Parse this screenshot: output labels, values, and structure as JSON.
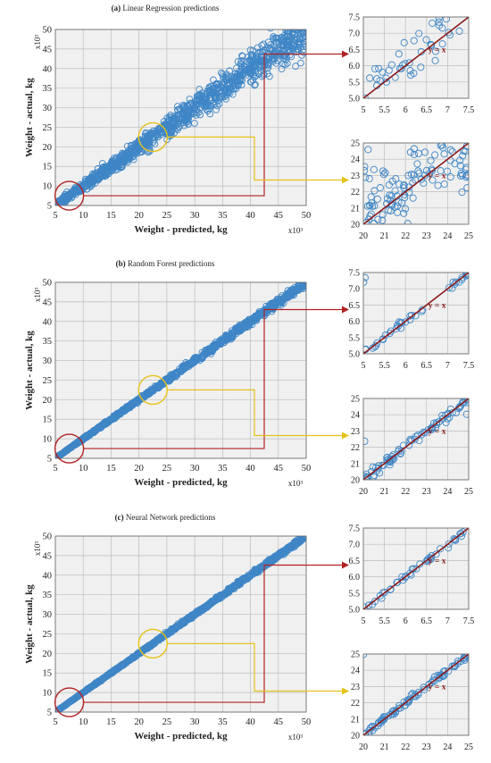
{
  "panels": [
    {
      "id": "a",
      "tag": "(a)",
      "title": "Linear Regression predictions"
    },
    {
      "id": "b",
      "tag": "(b)",
      "title": "Random Forest predictions"
    },
    {
      "id": "c",
      "tag": "(c)",
      "title": "Neural Network predictions"
    }
  ],
  "colors": {
    "point": "#3f86c6",
    "identity_line": "#8b1a1a",
    "zoom_low": "#b22222",
    "zoom_mid": "#e6c21a",
    "plot_bg": "#f0f0f0",
    "grid": "#bdbdbd"
  },
  "chart_data": [
    {
      "type": "scatter",
      "panel": "a",
      "role": "main",
      "xlabel": "Weight - predicted, kg",
      "ylabel": "Weight - actual, kg",
      "x_multiplier": "x10³",
      "y_multiplier": "x10³",
      "xlim": [
        5,
        50
      ],
      "ylim": [
        5,
        50
      ],
      "xticks": [
        5,
        10,
        15,
        20,
        25,
        30,
        35,
        40,
        45,
        50
      ],
      "yticks": [
        5,
        10,
        15,
        20,
        25,
        30,
        35,
        40,
        45,
        50
      ],
      "grid": true,
      "zoom_regions": [
        {
          "center": [
            7.5,
            7.5
          ],
          "color": "zoom_low"
        },
        {
          "center": [
            22.5,
            22.5
          ],
          "color": "zoom_mid"
        }
      ],
      "n_points": 1200,
      "spread": 0.1,
      "seed": 11
    },
    {
      "type": "scatter",
      "panel": "a",
      "role": "inset",
      "xlim": [
        5,
        7.5
      ],
      "ylim": [
        5,
        7.5
      ],
      "xticks": [
        5,
        5.5,
        6,
        6.5,
        7,
        7.5
      ],
      "yticks": [
        5.0,
        5.5,
        6.0,
        6.5,
        7.0,
        7.5
      ],
      "xtick_labels": [
        "5",
        "5.5",
        "6",
        "6.5",
        "7",
        "7.5"
      ],
      "ytick_labels": [
        "5.0",
        "5.5",
        "6.0",
        "6.5",
        "7.0",
        "7.5"
      ],
      "grid": true,
      "identity_label": "y = x",
      "n_points": 42,
      "spread": 0.85,
      "seed": 21
    },
    {
      "type": "scatter",
      "panel": "a",
      "role": "inset",
      "xlim": [
        20,
        25
      ],
      "ylim": [
        20,
        25
      ],
      "xticks": [
        20,
        21,
        22,
        23,
        24,
        25
      ],
      "yticks": [
        20,
        21,
        22,
        23,
        24,
        25
      ],
      "xtick_labels": [
        "20",
        "21",
        "22",
        "23",
        "24",
        "25"
      ],
      "ytick_labels": [
        "20",
        "21",
        "22",
        "23",
        "24",
        "25"
      ],
      "grid": true,
      "identity_label": "y = x",
      "n_points": 110,
      "spread": 2.0,
      "seed": 22
    },
    {
      "type": "scatter",
      "panel": "b",
      "role": "main",
      "xlabel": "Weight - predicted, kg",
      "ylabel": "Weight - actual, kg",
      "x_multiplier": "x10³",
      "y_multiplier": "x10³",
      "xlim": [
        5,
        50
      ],
      "ylim": [
        5,
        50
      ],
      "xticks": [
        5,
        10,
        15,
        20,
        25,
        30,
        35,
        40,
        45,
        50
      ],
      "yticks": [
        5,
        10,
        15,
        20,
        25,
        30,
        35,
        40,
        45,
        50
      ],
      "grid": true,
      "zoom_regions": [
        {
          "center": [
            7.5,
            7.5
          ],
          "color": "zoom_low"
        },
        {
          "center": [
            22.5,
            22.5
          ],
          "color": "zoom_mid"
        }
      ],
      "n_points": 1100,
      "spread": 0.022,
      "seed": 31
    },
    {
      "type": "scatter",
      "panel": "b",
      "role": "inset",
      "xlim": [
        5,
        7.5
      ],
      "ylim": [
        5,
        7.5
      ],
      "xticks": [
        5,
        5.5,
        6,
        6.5,
        7,
        7.5
      ],
      "yticks": [
        5.0,
        5.5,
        6.0,
        6.5,
        7.0,
        7.5
      ],
      "xtick_labels": [
        "5",
        "5.5",
        "6",
        "6.5",
        "7",
        "7.5"
      ],
      "ytick_labels": [
        "5.0",
        "5.5",
        "6.0",
        "6.5",
        "7.0",
        "7.5"
      ],
      "grid": true,
      "identity_label": "y = x",
      "n_points": 40,
      "spread": 0.13,
      "seed": 41
    },
    {
      "type": "scatter",
      "panel": "b",
      "role": "inset",
      "xlim": [
        20,
        25
      ],
      "ylim": [
        20,
        25
      ],
      "xticks": [
        20,
        21,
        22,
        23,
        24,
        25
      ],
      "yticks": [
        20,
        21,
        22,
        23,
        24,
        25
      ],
      "xtick_labels": [
        "20",
        "21",
        "22",
        "23",
        "24",
        "25"
      ],
      "ytick_labels": [
        "20",
        "21",
        "22",
        "23",
        "24",
        "25"
      ],
      "grid": true,
      "identity_label": "y = x",
      "n_points": 80,
      "spread": 0.35,
      "seed": 42
    },
    {
      "type": "scatter",
      "panel": "c",
      "role": "main",
      "xlabel": "Weight - predicted, kg",
      "ylabel": "Weight - actual, kg",
      "x_multiplier": "x10³",
      "y_multiplier": "x10³",
      "xlim": [
        5,
        50
      ],
      "ylim": [
        5,
        50
      ],
      "xticks": [
        5,
        10,
        15,
        20,
        25,
        30,
        35,
        40,
        45,
        50
      ],
      "yticks": [
        5,
        10,
        15,
        20,
        25,
        30,
        35,
        40,
        45,
        50
      ],
      "grid": true,
      "zoom_regions": [
        {
          "center": [
            7.5,
            7.5
          ],
          "color": "zoom_low"
        },
        {
          "center": [
            22.5,
            22.5
          ],
          "color": "zoom_mid"
        }
      ],
      "n_points": 1100,
      "spread": 0.012,
      "seed": 51
    },
    {
      "type": "scatter",
      "panel": "c",
      "role": "inset",
      "xlim": [
        5,
        7.5
      ],
      "ylim": [
        5,
        7.5
      ],
      "xticks": [
        5,
        5.5,
        6,
        6.5,
        7,
        7.5
      ],
      "yticks": [
        5.0,
        5.5,
        6.0,
        6.5,
        7.0,
        7.5
      ],
      "xtick_labels": [
        "5",
        "5.5",
        "6",
        "6.5",
        "7",
        "7.5"
      ],
      "ytick_labels": [
        "5.0",
        "5.5",
        "6.0",
        "6.5",
        "7.0",
        "7.5"
      ],
      "grid": true,
      "identity_label": "y = x",
      "n_points": 40,
      "spread": 0.11,
      "seed": 61
    },
    {
      "type": "scatter",
      "panel": "c",
      "role": "inset",
      "xlim": [
        20,
        25
      ],
      "ylim": [
        20,
        25
      ],
      "xticks": [
        20,
        21,
        22,
        23,
        24,
        25
      ],
      "yticks": [
        20,
        21,
        22,
        23,
        24,
        25
      ],
      "xtick_labels": [
        "20",
        "21",
        "22",
        "23",
        "24",
        "25"
      ],
      "ytick_labels": [
        "20",
        "21",
        "22",
        "23",
        "24",
        "25"
      ],
      "grid": true,
      "identity_label": "y = x",
      "n_points": 80,
      "spread": 0.2,
      "seed": 62
    }
  ]
}
